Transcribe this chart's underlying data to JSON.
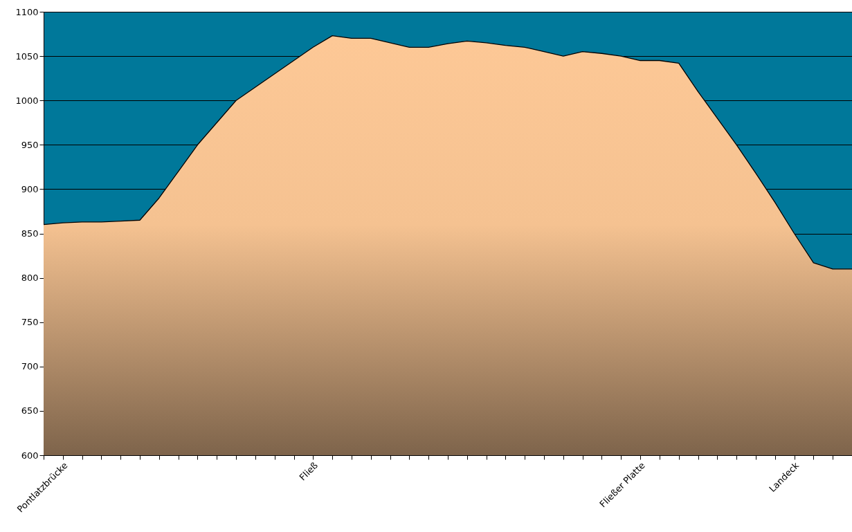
{
  "chart_data": {
    "type": "area",
    "categories": [
      null,
      "Pontlatzbrücke",
      null,
      null,
      null,
      null,
      null,
      null,
      null,
      null,
      null,
      null,
      null,
      null,
      "Fließ",
      null,
      null,
      null,
      null,
      null,
      null,
      null,
      null,
      null,
      null,
      null,
      null,
      null,
      null,
      null,
      null,
      "Fließer Platte",
      null,
      null,
      null,
      null,
      null,
      null,
      null,
      "Landeck",
      null,
      null,
      null
    ],
    "series": [
      {
        "color": "#fdc896",
        "values": [
          860,
          862,
          863,
          863,
          864,
          865,
          890,
          920,
          950,
          975,
          1000,
          1015,
          1030,
          1045,
          1060,
          1073,
          1070,
          1070,
          1065,
          1060,
          1060,
          1064,
          1067,
          1065,
          1062,
          1060,
          1055,
          1050,
          1055,
          1053,
          1050,
          1045,
          1045,
          1042,
          1010,
          980,
          950,
          918,
          885,
          850,
          817,
          810,
          810
        ]
      }
    ],
    "ylim": [
      600,
      1100
    ],
    "yticks": [
      600,
      650,
      700,
      750,
      800,
      850,
      900,
      950,
      1000,
      1050,
      1100
    ],
    "grid": "y"
  }
}
